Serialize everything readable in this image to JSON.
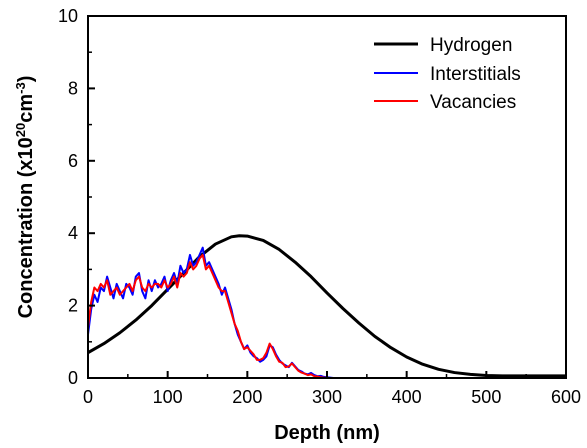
{
  "chart_data": {
    "type": "line",
    "xlabel": "Depth (nm)",
    "ylabel": {
      "main": "Concentration (x10",
      "exp1": "20",
      "mid": "cm",
      "exp2": "-3",
      "end": ")"
    },
    "xlim": [
      0,
      600
    ],
    "ylim": [
      0,
      10
    ],
    "xticks": [
      0,
      100,
      200,
      300,
      400,
      500,
      600
    ],
    "yticks": [
      0,
      2,
      4,
      6,
      8,
      10
    ],
    "xtick_labels": [
      "0",
      "100",
      "200",
      "300",
      "400",
      "500",
      "600"
    ],
    "ytick_labels": [
      "0",
      "2",
      "4",
      "6",
      "8",
      "10"
    ],
    "grid": false,
    "legend_position": "top-right",
    "series": [
      {
        "name": "Hydrogen",
        "color": "#000000",
        "x": [
          0,
          20,
          40,
          60,
          80,
          100,
          120,
          140,
          160,
          180,
          190,
          200,
          220,
          240,
          260,
          280,
          300,
          320,
          340,
          360,
          380,
          400,
          420,
          440,
          460,
          480,
          500,
          520,
          540,
          560,
          580,
          600
        ],
        "y": [
          0.7,
          0.95,
          1.25,
          1.6,
          2.0,
          2.45,
          2.9,
          3.35,
          3.7,
          3.9,
          3.93,
          3.92,
          3.8,
          3.55,
          3.2,
          2.8,
          2.35,
          1.92,
          1.52,
          1.15,
          0.84,
          0.58,
          0.38,
          0.24,
          0.15,
          0.1,
          0.07,
          0.06,
          0.06,
          0.06,
          0.06,
          0.06
        ]
      },
      {
        "name": "Interstitials",
        "color": "#0000ff",
        "x": [
          0,
          4,
          8,
          12,
          16,
          20,
          24,
          28,
          32,
          36,
          40,
          44,
          48,
          52,
          56,
          60,
          64,
          68,
          72,
          76,
          80,
          84,
          88,
          92,
          96,
          100,
          104,
          108,
          112,
          116,
          120,
          124,
          128,
          132,
          136,
          140,
          144,
          148,
          152,
          156,
          160,
          164,
          168,
          172,
          176,
          180,
          184,
          188,
          192,
          196,
          200,
          204,
          208,
          212,
          216,
          220,
          224,
          228,
          232,
          236,
          240,
          244,
          248,
          252,
          256,
          260,
          264,
          268,
          272,
          276,
          280,
          284,
          288,
          292,
          296,
          300,
          304,
          308
        ],
        "y": [
          1.2,
          1.9,
          2.3,
          2.1,
          2.5,
          2.4,
          2.8,
          2.5,
          2.2,
          2.6,
          2.4,
          2.2,
          2.6,
          2.5,
          2.3,
          2.8,
          2.9,
          2.4,
          2.2,
          2.7,
          2.4,
          2.7,
          2.5,
          2.6,
          2.8,
          2.4,
          2.7,
          2.9,
          2.6,
          3.1,
          2.9,
          3.0,
          3.4,
          3.1,
          3.2,
          3.4,
          3.6,
          3.1,
          3.2,
          3.0,
          2.8,
          2.6,
          2.3,
          2.5,
          2.2,
          1.9,
          1.5,
          1.2,
          1.0,
          0.8,
          0.9,
          0.7,
          0.6,
          0.55,
          0.45,
          0.5,
          0.6,
          0.9,
          0.85,
          0.65,
          0.5,
          0.4,
          0.35,
          0.3,
          0.42,
          0.32,
          0.22,
          0.18,
          0.12,
          0.1,
          0.14,
          0.08,
          0.05,
          0.06,
          0.03,
          0.02,
          0.01,
          0.0
        ]
      },
      {
        "name": "Vacancies",
        "color": "#ff0000",
        "x": [
          0,
          4,
          8,
          12,
          16,
          20,
          24,
          28,
          32,
          36,
          40,
          44,
          48,
          52,
          56,
          60,
          64,
          68,
          72,
          76,
          80,
          84,
          88,
          92,
          96,
          100,
          104,
          108,
          112,
          116,
          120,
          124,
          128,
          132,
          136,
          140,
          144,
          148,
          152,
          156,
          160,
          164,
          168,
          172,
          176,
          180,
          184,
          188,
          192,
          196,
          200,
          204,
          208,
          212,
          216,
          220,
          224,
          228,
          232,
          236,
          240,
          244,
          248,
          252,
          256,
          260,
          264,
          268,
          272,
          276,
          280,
          284,
          288,
          292,
          296,
          300
        ],
        "y": [
          1.4,
          2.1,
          2.5,
          2.4,
          2.6,
          2.5,
          2.7,
          2.3,
          2.4,
          2.5,
          2.3,
          2.4,
          2.5,
          2.6,
          2.4,
          2.7,
          2.8,
          2.5,
          2.4,
          2.6,
          2.5,
          2.6,
          2.6,
          2.5,
          2.7,
          2.5,
          2.6,
          2.8,
          2.5,
          2.9,
          2.8,
          2.9,
          3.2,
          3.0,
          3.1,
          3.3,
          3.4,
          3.0,
          3.1,
          2.9,
          2.7,
          2.5,
          2.4,
          2.4,
          2.1,
          1.8,
          1.5,
          1.3,
          1.0,
          0.8,
          0.85,
          0.75,
          0.65,
          0.5,
          0.5,
          0.55,
          0.7,
          0.95,
          0.8,
          0.6,
          0.45,
          0.42,
          0.3,
          0.32,
          0.4,
          0.3,
          0.2,
          0.15,
          0.12,
          0.08,
          0.1,
          0.05,
          0.04,
          0.02,
          0.01,
          0.0
        ]
      }
    ]
  }
}
